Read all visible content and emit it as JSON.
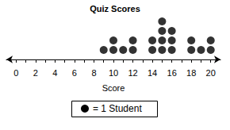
{
  "chart_data": {
    "type": "dot",
    "title": "Quiz Scores",
    "xlabel": "Score",
    "x": [
      9,
      10,
      11,
      12,
      14,
      15,
      16,
      18,
      19,
      20
    ],
    "values": [
      1,
      2,
      1,
      2,
      2,
      4,
      3,
      2,
      1,
      2
    ],
    "color": "#000000",
    "marker": "circle",
    "xlim": [
      -1,
      21
    ],
    "xticks": [
      0,
      2,
      4,
      6,
      8,
      10,
      12,
      14,
      16,
      18,
      20
    ],
    "tick_labels": "x",
    "grid": false,
    "annotations": [
      "= 1 Student"
    ]
  }
}
